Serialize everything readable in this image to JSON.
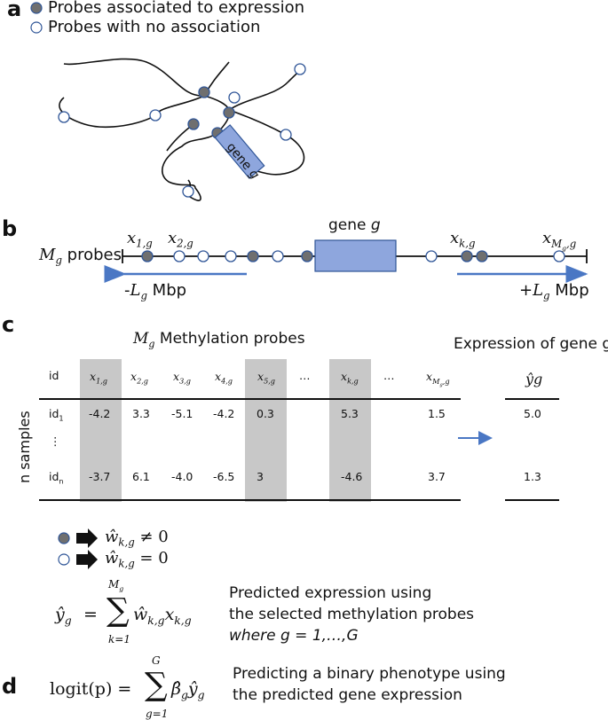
{
  "panels": {
    "a": "a",
    "b": "b",
    "c": "c",
    "d": "d"
  },
  "legend": {
    "associated": "Probes associated to expression",
    "no_association": "Probes with no association"
  },
  "panel_a": {
    "gene_label": "gene",
    "gene_var": "g"
  },
  "panel_b": {
    "probes_label_var": "M",
    "probes_label_sub": "g",
    "probes_label_text": "probes",
    "gene_label": "gene",
    "gene_var": "g",
    "left_range_prefix": "-",
    "left_range_var": "L",
    "left_range_sub": "g",
    "left_range_unit": "Mbp",
    "right_range_prefix": "+",
    "right_range_var": "L",
    "right_range_sub": "g",
    "right_range_unit": "Mbp",
    "x1": {
      "var": "x",
      "sub": "1,g"
    },
    "x2": {
      "var": "x",
      "sub": "2,g"
    },
    "xk": {
      "var": "x",
      "sub": "k,g"
    },
    "xm": {
      "var": "x",
      "sub_main": "M",
      "sub_sub": "g",
      "sub_tail": ",g"
    }
  },
  "panel_c": {
    "title_var": "M",
    "title_sub": "g",
    "title_text": "Methylation probes",
    "expression_title": "Expression of gene g",
    "y_axis_label": "n samples",
    "header": [
      "id",
      "x1,g",
      "x2,g",
      "x3,g",
      "x4,g",
      "x5,g",
      "…",
      "xk,g",
      "…",
      "xMg,g"
    ],
    "y_header": "ŷg",
    "rows": [
      {
        "id": "id",
        "id_sub": "1",
        "values": [
          "-4.2",
          "3.3",
          "-5.1",
          "-4.2",
          "0.3",
          "5.3",
          "1.5"
        ],
        "y": "5.0"
      },
      {
        "id": "⋮",
        "id_sub": "",
        "values": [
          "",
          "",
          "",
          "",
          "",
          "",
          ""
        ],
        "y": ""
      },
      {
        "id": "id",
        "id_sub": "n",
        "values": [
          "-3.7",
          "6.1",
          "-4.0",
          "-6.5",
          "3",
          "-4.6",
          "3.7"
        ],
        "y": "1.3"
      }
    ]
  },
  "rules": {
    "nonzero": "ŵk,g ≠ 0",
    "zero": "ŵk,g = 0",
    "sum_upper": "M",
    "sum_upper_sub": "g",
    "sum_lower": "k=1",
    "expression_line1": "Predicted expression using",
    "expression_line2": "the selected methylation probes",
    "expression_line3": "where g = 1,…,G"
  },
  "panel_d": {
    "logit_lhs": "logit(p) =",
    "sum_upper": "G",
    "sum_lower": "g=1",
    "line1": "Predicting a binary phenotype using",
    "line2": "the predicted gene expression"
  },
  "colors": {
    "associated_fill": "#6f6f6f",
    "no_association_stroke": "#2f5597",
    "gene_box": "#8ea6dd",
    "gene_box_stroke": "#2f5597",
    "arrow_blue": "#4a77c4",
    "shade": "#c8c8c8"
  }
}
